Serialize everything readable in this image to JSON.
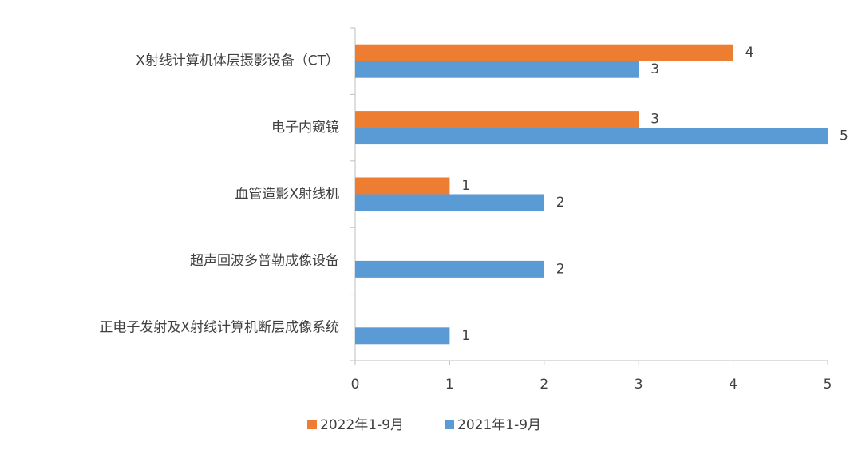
{
  "chart_data": {
    "type": "bar",
    "orientation": "horizontal",
    "categories": [
      "X射线计算机体层摄影设备（CT）",
      "电子内窥镜",
      "血管造影X射线机",
      "超声回波多普勒成像设备",
      "正电子发射及X射线计算机断层成像系统"
    ],
    "series": [
      {
        "name": "2022年1-9月",
        "color": "#ed7d31",
        "values": [
          4,
          3,
          1,
          null,
          null
        ]
      },
      {
        "name": "2021年1-9月",
        "color": "#5b9bd5",
        "values": [
          3,
          5,
          2,
          2,
          1
        ]
      }
    ],
    "xlim": [
      0,
      5
    ],
    "xticks": [
      0,
      1,
      2,
      3,
      4,
      5
    ],
    "grid": false,
    "legend": "bottom",
    "data_labels": true
  }
}
